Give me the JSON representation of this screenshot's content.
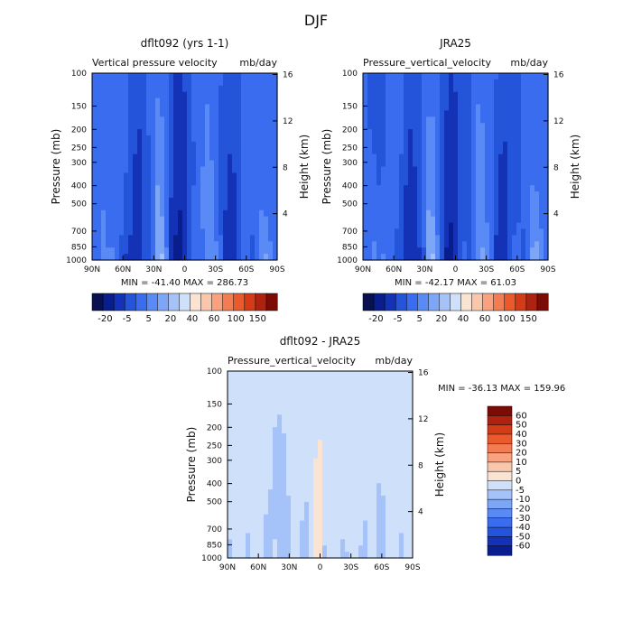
{
  "figure": {
    "title": "DJF"
  },
  "chart_data": [
    {
      "type": "heatmap",
      "title": "dflt092 (yrs 1-1)",
      "subtitle_left": "Vertical pressure velocity",
      "subtitle_right": "mb/day",
      "xlabel": "",
      "ylabel": "Pressure (mb)",
      "y2label": "Height (km)",
      "x_ticks": [
        "90N",
        "60N",
        "30N",
        "0",
        "30S",
        "60S",
        "90S"
      ],
      "x_tick_values": [
        90,
        60,
        30,
        0,
        -30,
        -60,
        -90
      ],
      "y_ticks": [
        100,
        150,
        200,
        250,
        300,
        400,
        500,
        700,
        850,
        1000
      ],
      "y_scale": "log",
      "ylim": [
        1000,
        100
      ],
      "y2_ticks": [
        16,
        12,
        8,
        4
      ],
      "stats": "MIN = -41.40   MAX = 286.73",
      "colorbar": {
        "orientation": "horizontal",
        "labels": [
          "-20",
          "-5",
          "5",
          "20",
          "40",
          "60",
          "100",
          "150"
        ],
        "levels": [
          -40,
          -30,
          -20,
          -10,
          -5,
          0,
          5,
          10,
          20,
          30,
          40,
          50,
          60,
          80,
          100,
          125,
          150
        ],
        "colors": [
          "#08104f",
          "#0a1d8c",
          "#1432b6",
          "#2454d9",
          "#3a6cf0",
          "#5a8af5",
          "#7ea6f7",
          "#a6c3f9",
          "#cfe0fb",
          "#fbe3d2",
          "#f9c7ac",
          "#f8a27f",
          "#f47c52",
          "#ea5a2c",
          "#d43b17",
          "#b02210",
          "#7c0a05"
        ]
      }
    },
    {
      "type": "heatmap",
      "title": "JRA25",
      "subtitle_left": "Pressure_vertical_velocity",
      "subtitle_right": "mb/day",
      "xlabel": "",
      "ylabel": "Pressure (mb)",
      "y2label": "Height (km)",
      "x_ticks": [
        "90N",
        "60N",
        "30N",
        "0",
        "30S",
        "60S",
        "90S"
      ],
      "x_tick_values": [
        90,
        60,
        30,
        0,
        -30,
        -60,
        -90
      ],
      "y_ticks": [
        100,
        150,
        200,
        250,
        300,
        400,
        500,
        700,
        850,
        1000
      ],
      "y_scale": "log",
      "ylim": [
        1000,
        100
      ],
      "y2_ticks": [
        16,
        12,
        8,
        4
      ],
      "stats": "MIN = -42.17   MAX =  61.03",
      "colorbar": {
        "orientation": "horizontal",
        "labels": [
          "-20",
          "-5",
          "5",
          "20",
          "40",
          "60",
          "100",
          "150"
        ],
        "levels": [
          -40,
          -30,
          -20,
          -10,
          -5,
          0,
          5,
          10,
          20,
          30,
          40,
          50,
          60,
          80,
          100,
          125,
          150
        ],
        "colors": [
          "#08104f",
          "#0a1d8c",
          "#1432b6",
          "#2454d9",
          "#3a6cf0",
          "#5a8af5",
          "#7ea6f7",
          "#a6c3f9",
          "#cfe0fb",
          "#fbe3d2",
          "#f9c7ac",
          "#f8a27f",
          "#f47c52",
          "#ea5a2c",
          "#d43b17",
          "#b02210",
          "#7c0a05"
        ]
      }
    },
    {
      "type": "heatmap",
      "title": "dflt092 - JRA25",
      "subtitle_left": "Pressure_vertical_velocity",
      "subtitle_right": "mb/day",
      "xlabel": "",
      "ylabel": "Pressure (mb)",
      "y2label": "Height (km)",
      "x_ticks": [
        "90N",
        "60N",
        "30N",
        "0",
        "30S",
        "60S",
        "90S"
      ],
      "x_tick_values": [
        90,
        60,
        30,
        0,
        -30,
        -60,
        -90
      ],
      "y_ticks": [
        100,
        150,
        200,
        250,
        300,
        400,
        500,
        700,
        850,
        1000
      ],
      "y_scale": "log",
      "ylim": [
        1000,
        100
      ],
      "y2_ticks": [
        16,
        12,
        8,
        4
      ],
      "stats": "MIN = -36.13   MAX = 159.96",
      "colorbar": {
        "orientation": "vertical",
        "labels": [
          "60",
          "50",
          "40",
          "30",
          "20",
          "10",
          "5",
          "0",
          "-5",
          "-10",
          "-20",
          "-30",
          "-40",
          "-50",
          "-60"
        ],
        "colors": [
          "#7c0a05",
          "#b02210",
          "#d43b17",
          "#ea5a2c",
          "#f47c52",
          "#f8a27f",
          "#f9c7ac",
          "#fbe3d2",
          "#cfe0fb",
          "#a6c3f9",
          "#7ea6f7",
          "#5a8af5",
          "#3a6cf0",
          "#2454d9",
          "#1432b6",
          "#0a1d8c"
        ]
      }
    }
  ]
}
